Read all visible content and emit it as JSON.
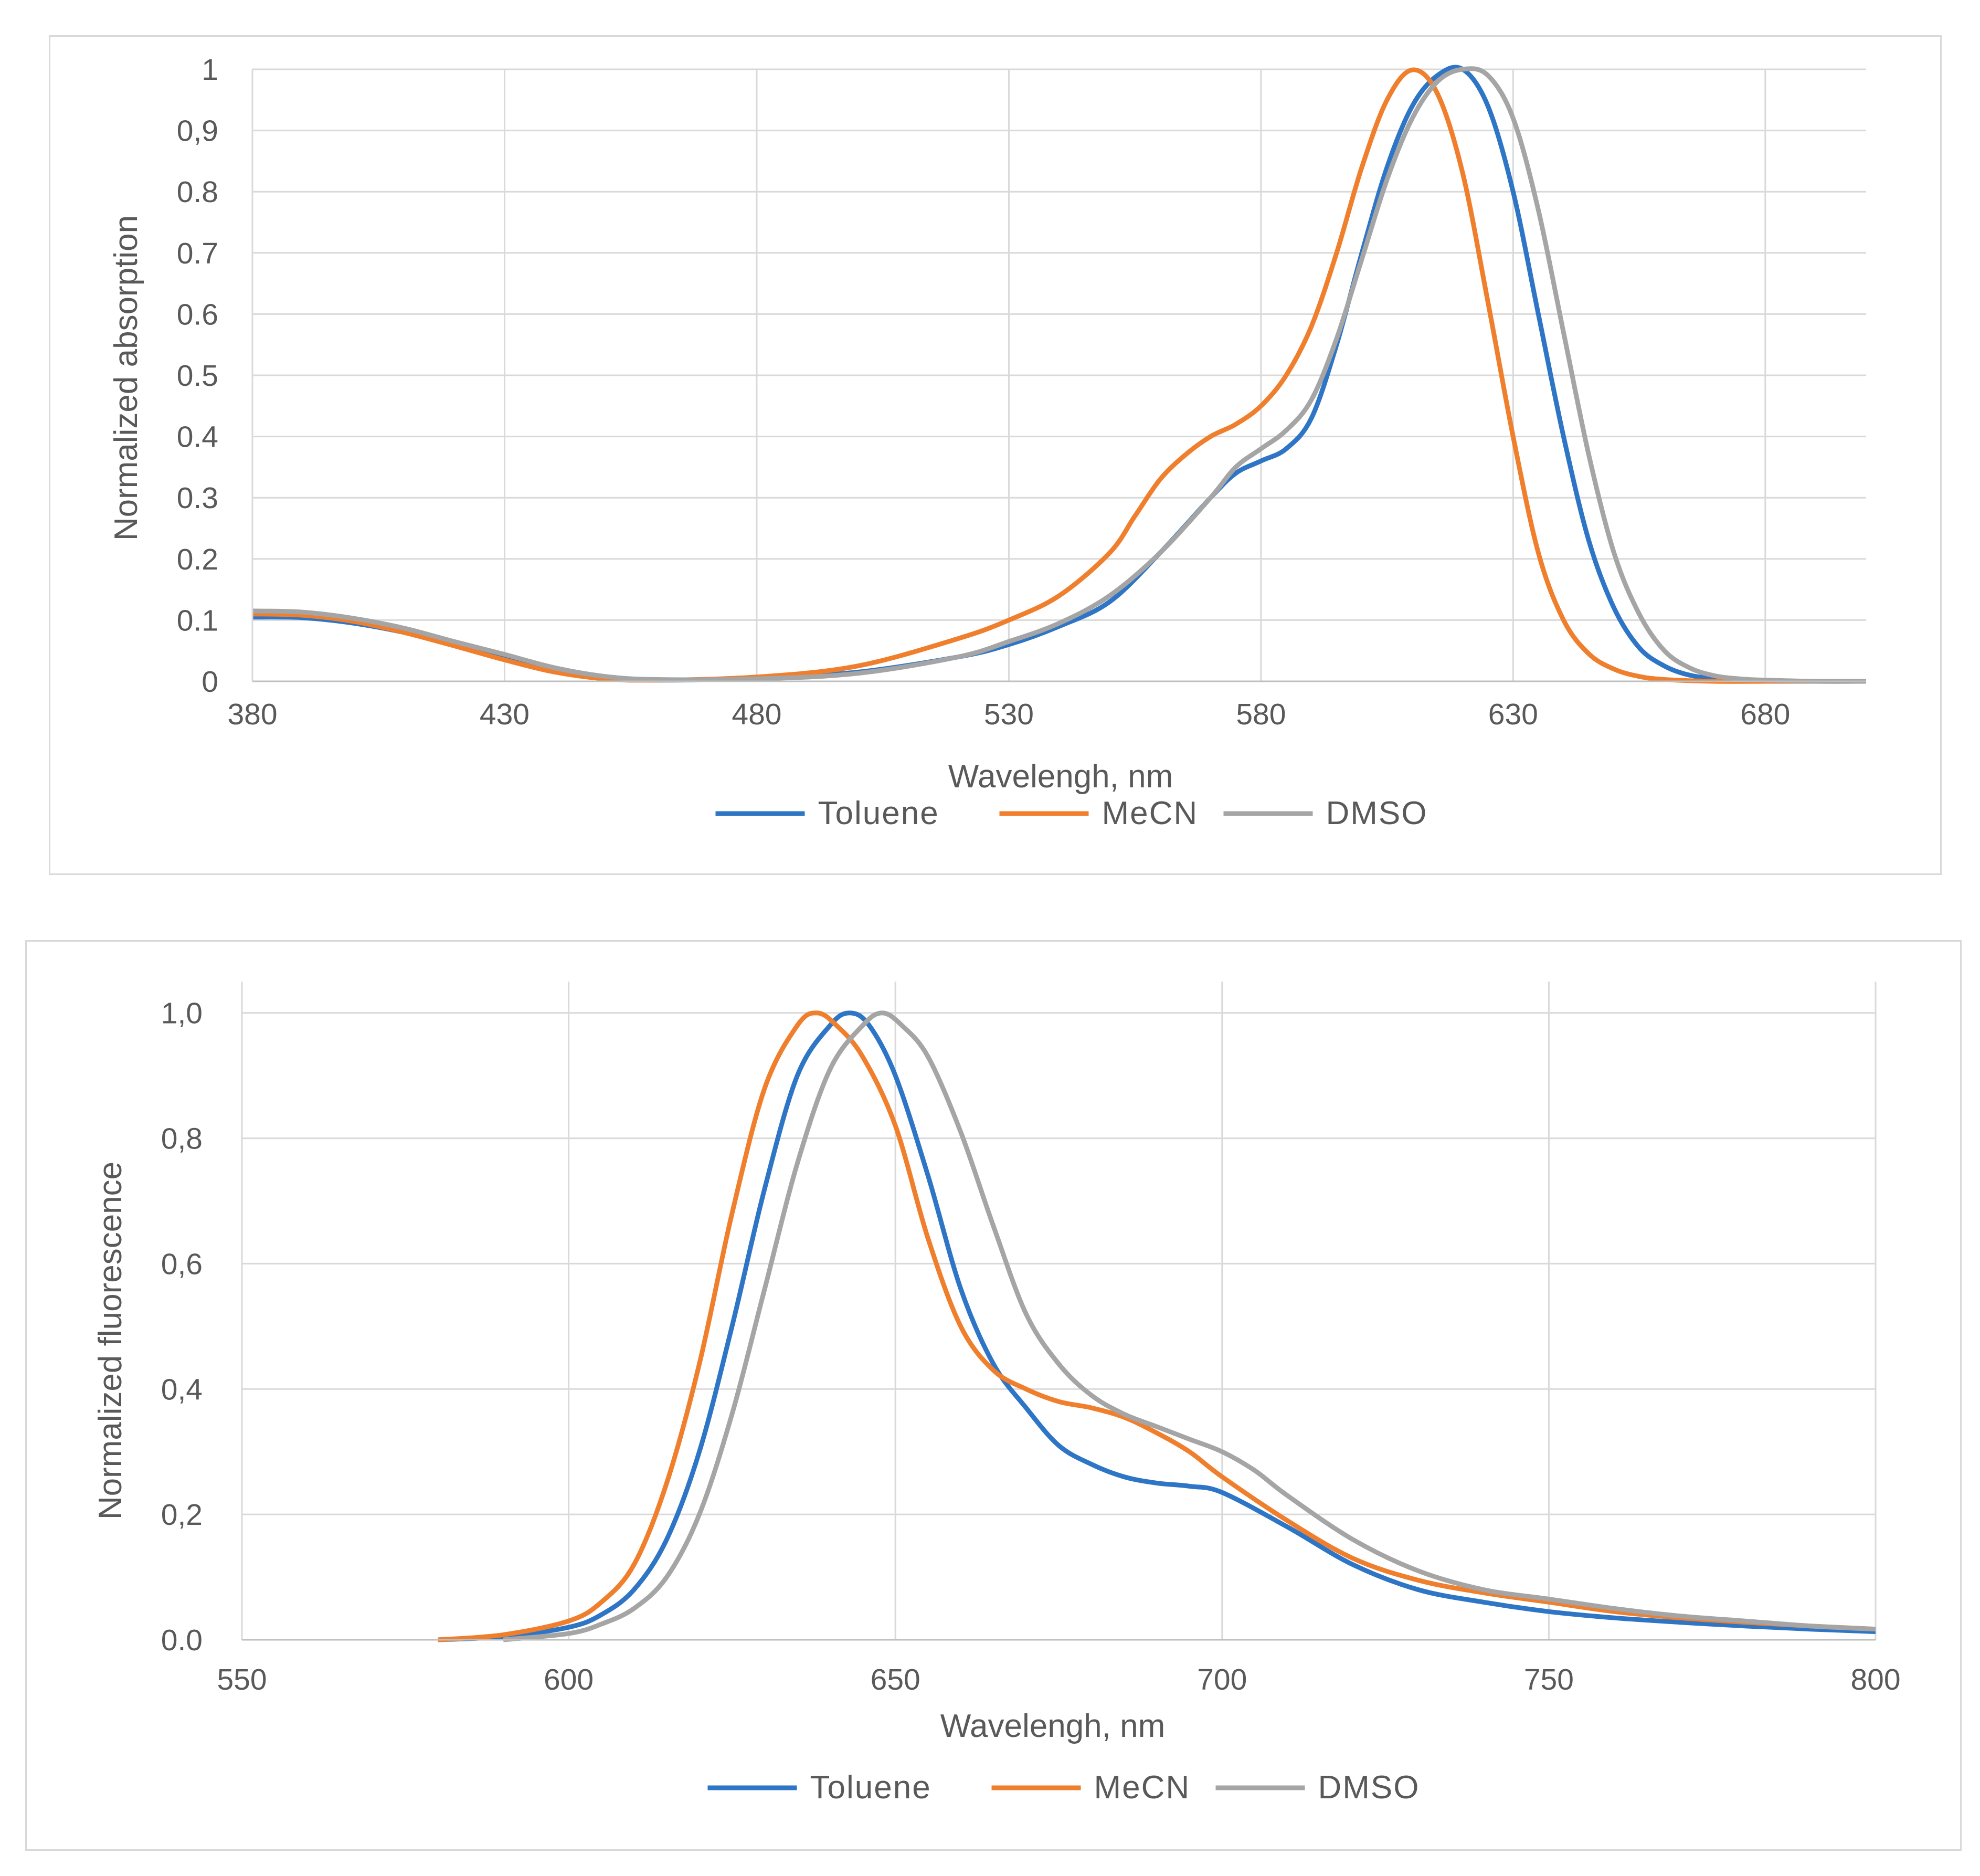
{
  "chart_data": [
    {
      "type": "line",
      "title": "",
      "xlabel": "Wavelengh, nm",
      "ylabel": "Normalized absorption",
      "xlim": [
        380,
        700
      ],
      "ylim": [
        0,
        1
      ],
      "xticks": [
        380,
        430,
        480,
        530,
        580,
        630,
        680
      ],
      "xtick_labels": [
        "380",
        "430",
        "480",
        "530",
        "580",
        "630",
        "680"
      ],
      "yticks": [
        0,
        0.1,
        0.2,
        0.3,
        0.4,
        0.5,
        0.6,
        0.7,
        0.8,
        0.9,
        1
      ],
      "ytick_labels": [
        "0",
        "0.1",
        "0.2",
        "0.3",
        "0.4",
        "0.5",
        "0.6",
        "0.7",
        "0.8",
        "0,9",
        "1"
      ],
      "grid": true,
      "legend_position": "bottom",
      "series": [
        {
          "name": "Toluene",
          "color": "#2e75c6",
          "x": [
            380,
            390,
            400,
            410,
            420,
            430,
            440,
            450,
            460,
            480,
            500,
            520,
            530,
            540,
            550,
            560,
            570,
            575,
            580,
            585,
            590,
            595,
            600,
            605,
            610,
            615,
            620,
            625,
            630,
            635,
            640,
            645,
            650,
            655,
            660,
            665,
            670,
            680,
            690,
            700
          ],
          "y": [
            0.105,
            0.104,
            0.095,
            0.08,
            0.06,
            0.04,
            0.02,
            0.007,
            0.002,
            0.005,
            0.015,
            0.04,
            0.06,
            0.09,
            0.13,
            0.21,
            0.3,
            0.34,
            0.36,
            0.38,
            0.43,
            0.55,
            0.7,
            0.84,
            0.94,
            0.99,
            1.0,
            0.94,
            0.8,
            0.6,
            0.4,
            0.23,
            0.12,
            0.055,
            0.025,
            0.01,
            0.005,
            0.001,
            0.0,
            0.0
          ]
        },
        {
          "name": "MeCN",
          "color": "#f07f2d",
          "x": [
            380,
            390,
            400,
            410,
            420,
            430,
            440,
            450,
            460,
            480,
            500,
            520,
            530,
            540,
            550,
            555,
            560,
            565,
            570,
            575,
            580,
            585,
            590,
            595,
            600,
            605,
            610,
            615,
            620,
            625,
            630,
            635,
            640,
            645,
            650,
            655,
            660,
            670,
            680,
            690,
            700
          ],
          "y": [
            0.11,
            0.108,
            0.098,
            0.08,
            0.058,
            0.035,
            0.015,
            0.004,
            0.002,
            0.007,
            0.025,
            0.07,
            0.1,
            0.14,
            0.21,
            0.27,
            0.33,
            0.37,
            0.4,
            0.42,
            0.45,
            0.5,
            0.58,
            0.7,
            0.84,
            0.95,
            0.999,
            0.96,
            0.83,
            0.62,
            0.4,
            0.21,
            0.1,
            0.045,
            0.02,
            0.008,
            0.003,
            0.0,
            0.0,
            0.0,
            0.0
          ]
        },
        {
          "name": "DMSO",
          "color": "#a5a5a5",
          "x": [
            380,
            390,
            400,
            410,
            420,
            430,
            440,
            450,
            460,
            480,
            500,
            520,
            530,
            540,
            550,
            560,
            570,
            575,
            580,
            585,
            590,
            595,
            600,
            605,
            610,
            615,
            620,
            625,
            630,
            635,
            640,
            645,
            650,
            655,
            660,
            665,
            670,
            675,
            680,
            690,
            700
          ],
          "y": [
            0.115,
            0.113,
            0.103,
            0.087,
            0.065,
            0.044,
            0.022,
            0.008,
            0.003,
            0.004,
            0.013,
            0.04,
            0.065,
            0.095,
            0.14,
            0.21,
            0.3,
            0.35,
            0.38,
            0.41,
            0.46,
            0.56,
            0.69,
            0.82,
            0.92,
            0.98,
            1.0,
            0.99,
            0.92,
            0.77,
            0.57,
            0.37,
            0.21,
            0.11,
            0.05,
            0.022,
            0.009,
            0.004,
            0.002,
            0.0,
            0.0
          ]
        }
      ]
    },
    {
      "type": "line",
      "title": "",
      "xlabel": "Wavelengh, nm",
      "ylabel": "Normalized fluorescence",
      "xlim": [
        550,
        800
      ],
      "ylim": [
        0,
        1.05
      ],
      "xticks": [
        550,
        600,
        650,
        700,
        750,
        800
      ],
      "xtick_labels": [
        "550",
        "600",
        "650",
        "700",
        "750",
        "800"
      ],
      "yticks": [
        0,
        0.2,
        0.4,
        0.6,
        0.8,
        1.0
      ],
      "ytick_labels": [
        "0.0",
        "0,2",
        "0,4",
        "0,6",
        "0,8",
        "1,0"
      ],
      "grid": true,
      "legend_position": "bottom",
      "series": [
        {
          "name": "Toluene",
          "color": "#2e75c6",
          "x": [
            580,
            590,
            600,
            605,
            610,
            615,
            620,
            625,
            630,
            635,
            640,
            643,
            646,
            650,
            655,
            660,
            665,
            670,
            675,
            680,
            685,
            690,
            695,
            700,
            710,
            720,
            730,
            740,
            750,
            760,
            770,
            780,
            790,
            800
          ],
          "y": [
            0.0,
            0.005,
            0.02,
            0.04,
            0.08,
            0.16,
            0.3,
            0.5,
            0.72,
            0.9,
            0.98,
            1.0,
            0.98,
            0.9,
            0.74,
            0.56,
            0.44,
            0.37,
            0.31,
            0.28,
            0.26,
            0.25,
            0.245,
            0.235,
            0.18,
            0.12,
            0.08,
            0.06,
            0.045,
            0.035,
            0.028,
            0.022,
            0.017,
            0.013
          ]
        },
        {
          "name": "MeCN",
          "color": "#f07f2d",
          "x": [
            580,
            590,
            600,
            605,
            610,
            615,
            620,
            625,
            630,
            635,
            638,
            641,
            645,
            650,
            655,
            660,
            665,
            670,
            675,
            680,
            685,
            690,
            695,
            700,
            710,
            720,
            730,
            740,
            750,
            760,
            770,
            780,
            790,
            800
          ],
          "y": [
            0.0,
            0.008,
            0.03,
            0.06,
            0.12,
            0.25,
            0.44,
            0.68,
            0.88,
            0.98,
            1.0,
            0.98,
            0.93,
            0.82,
            0.64,
            0.5,
            0.43,
            0.4,
            0.38,
            0.37,
            0.355,
            0.33,
            0.3,
            0.26,
            0.19,
            0.13,
            0.095,
            0.075,
            0.06,
            0.045,
            0.035,
            0.028,
            0.022,
            0.017
          ]
        },
        {
          "name": "DMSO",
          "color": "#a5a5a5",
          "x": [
            590,
            600,
            605,
            610,
            615,
            620,
            625,
            630,
            635,
            640,
            645,
            648,
            651,
            655,
            660,
            665,
            670,
            675,
            680,
            685,
            690,
            695,
            700,
            705,
            710,
            720,
            730,
            740,
            750,
            760,
            770,
            780,
            790,
            800
          ],
          "y": [
            0.0,
            0.01,
            0.025,
            0.05,
            0.1,
            0.2,
            0.36,
            0.56,
            0.76,
            0.91,
            0.98,
            1.0,
            0.98,
            0.93,
            0.81,
            0.66,
            0.52,
            0.44,
            0.39,
            0.36,
            0.34,
            0.32,
            0.3,
            0.27,
            0.23,
            0.16,
            0.11,
            0.08,
            0.065,
            0.05,
            0.038,
            0.03,
            0.022,
            0.017
          ]
        }
      ]
    }
  ]
}
